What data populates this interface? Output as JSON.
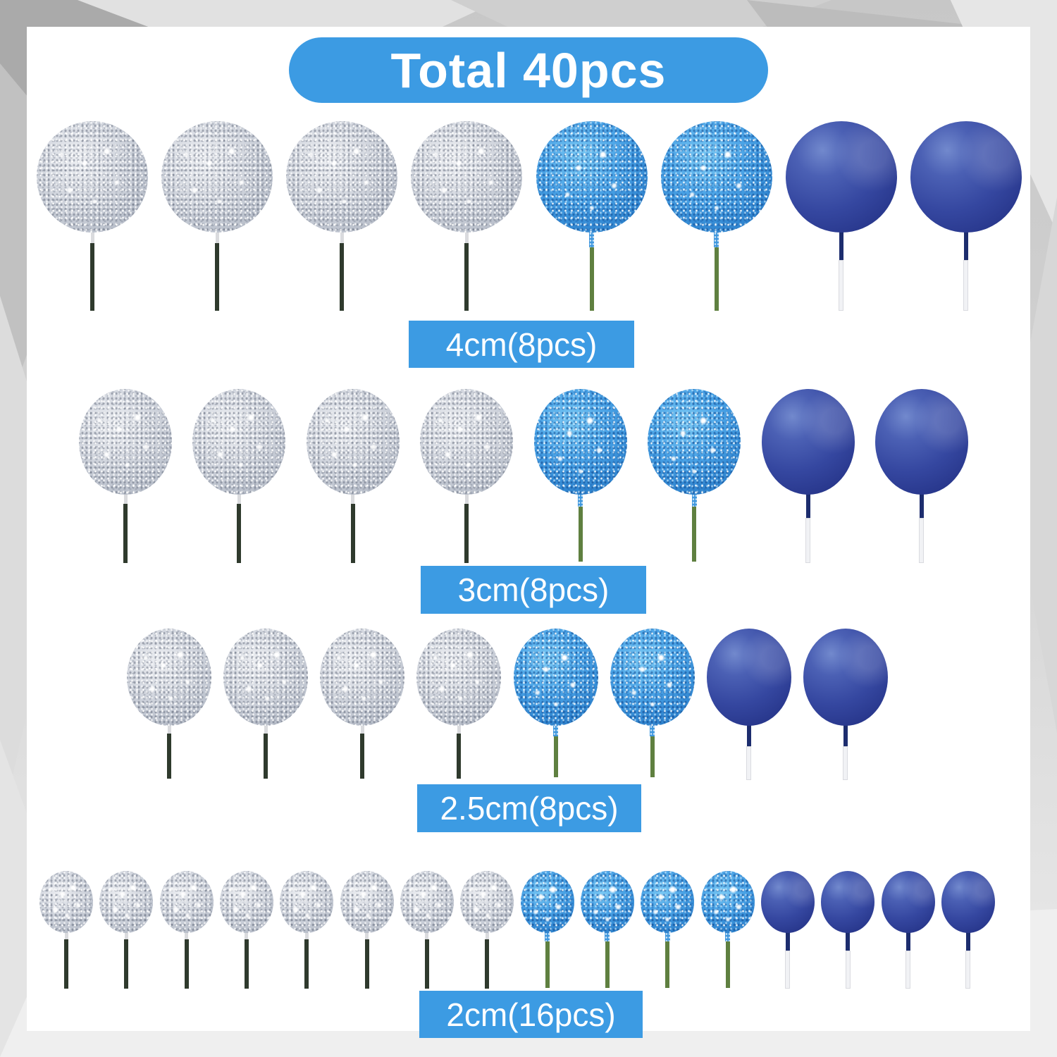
{
  "product": {
    "title": "Total 40pcs",
    "theme_color": "#3c9be3",
    "ball_colors": {
      "silver": "#c9cdd7",
      "blue-glitter": "#3f97dd",
      "navy": "#2f419c"
    },
    "rows": [
      {
        "label": "4cm(8pcs)",
        "size": "4cm",
        "count": 8,
        "balls": [
          "silver",
          "silver",
          "silver",
          "silver",
          "blue-glitter",
          "blue-glitter",
          "navy",
          "navy"
        ]
      },
      {
        "label": "3cm(8pcs)",
        "size": "3cm",
        "count": 8,
        "balls": [
          "silver",
          "silver",
          "silver",
          "silver",
          "blue-glitter",
          "blue-glitter",
          "navy",
          "navy"
        ]
      },
      {
        "label": "2.5cm(8pcs)",
        "size": "2.5cm",
        "count": 8,
        "balls": [
          "silver",
          "silver",
          "silver",
          "silver",
          "blue-glitter",
          "blue-glitter",
          "navy",
          "navy"
        ]
      },
      {
        "label": "2cm(16pcs)",
        "size": "2cm",
        "count": 16,
        "balls": [
          "silver",
          "silver",
          "silver",
          "silver",
          "silver",
          "silver",
          "silver",
          "silver",
          "blue-glitter",
          "blue-glitter",
          "blue-glitter",
          "blue-glitter",
          "navy",
          "navy",
          "navy",
          "navy"
        ]
      }
    ]
  }
}
